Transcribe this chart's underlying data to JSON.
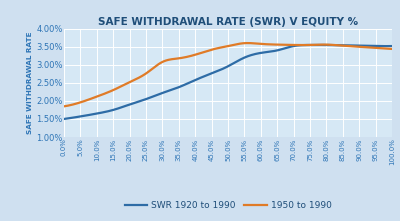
{
  "title": "SAFE WITHDRAWAL RATE (SWR) V EQUITY %",
  "ylabel": "SAFE WITHDRAWAL RATE",
  "background_color": "#cfe0f0",
  "plot_bg_color": "#d6e8f5",
  "x_labels": [
    "0.0%",
    "5.0%",
    "10.0%",
    "15.0%",
    "20.0%",
    "25.0%",
    "30.0%",
    "35.0%",
    "40.0%",
    "45.0%",
    "50.0%",
    "55.0%",
    "60.0%",
    "65.0%",
    "70.0%",
    "75.0%",
    "80.0%",
    "85.0%",
    "90.0%",
    "95.0%",
    "100.0%"
  ],
  "x_values": [
    0,
    5,
    10,
    15,
    20,
    25,
    30,
    35,
    40,
    45,
    50,
    55,
    60,
    65,
    70,
    75,
    80,
    85,
    90,
    95,
    100
  ],
  "swr_1920": [
    1.5,
    1.57,
    1.65,
    1.75,
    1.9,
    2.05,
    2.22,
    2.38,
    2.58,
    2.76,
    2.96,
    3.2,
    3.33,
    3.4,
    3.52,
    3.55,
    3.55,
    3.54,
    3.53,
    3.52,
    3.52
  ],
  "swr_1950": [
    1.85,
    1.96,
    2.12,
    2.3,
    2.52,
    2.76,
    3.08,
    3.18,
    3.28,
    3.42,
    3.52,
    3.6,
    3.58,
    3.56,
    3.55,
    3.55,
    3.56,
    3.53,
    3.5,
    3.47,
    3.44
  ],
  "color_1920": "#2e6ca6",
  "color_1950": "#e07b27",
  "legend_1920": "SWR 1920 to 1990",
  "legend_1950": "1950 to 1990",
  "ylim": [
    1.0,
    4.0
  ],
  "yticks": [
    1.0,
    1.5,
    2.0,
    2.5,
    3.0,
    3.5,
    4.0
  ],
  "grid_color": "#ffffff",
  "title_color": "#1f4e79",
  "axis_label_color": "#2e75b6",
  "tick_label_color": "#2e75b6"
}
